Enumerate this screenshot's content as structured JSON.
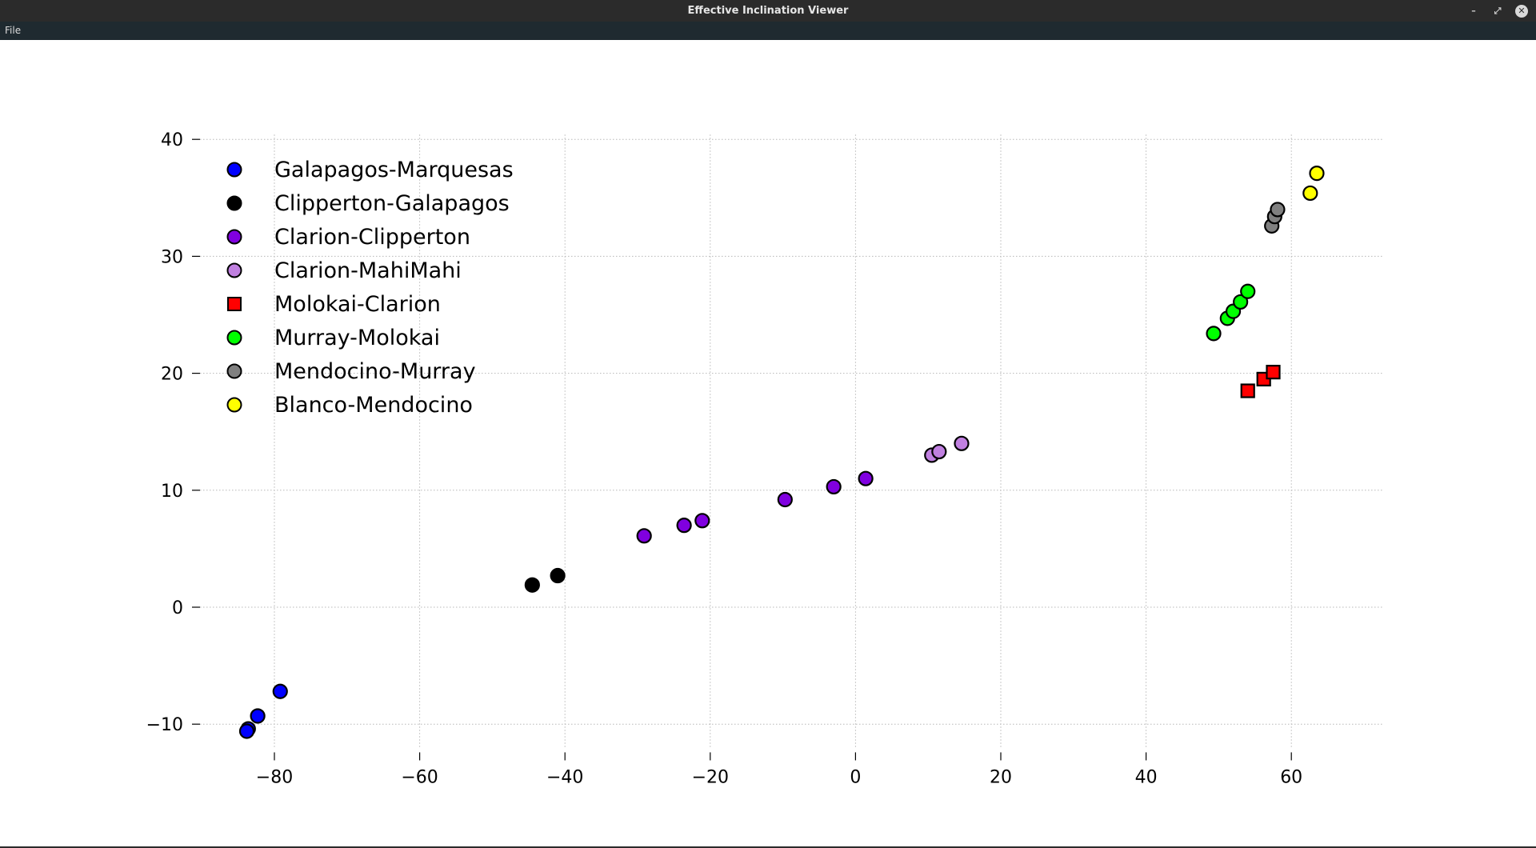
{
  "window": {
    "title": "Effective Inclination Viewer",
    "minimize_label": "–",
    "restore_label": "⤢",
    "close_label": "✕"
  },
  "menu": {
    "file_label": "File"
  },
  "chart_data": {
    "type": "scatter",
    "title": "",
    "xlabel": "",
    "ylabel": "",
    "xlim": [
      -90,
      72
    ],
    "ylim": [
      -12,
      42
    ],
    "xticks": [
      -80,
      -60,
      -40,
      -20,
      0,
      20,
      40,
      60
    ],
    "yticks": [
      -10,
      0,
      10,
      20,
      30,
      40
    ],
    "grid": true,
    "legend": "top-left",
    "series": [
      {
        "name": "Galapagos-Marquesas",
        "color": "#0000ff",
        "marker": "circle",
        "points": [
          [
            -79.2,
            -7.2
          ],
          [
            -82.3,
            -9.3
          ],
          [
            -83.6,
            -10.4
          ],
          [
            -83.8,
            -10.6
          ]
        ]
      },
      {
        "name": "Clipperton-Galapagos",
        "color": "#000000",
        "marker": "circle",
        "points": [
          [
            -44.5,
            1.9
          ],
          [
            -41.0,
            2.7
          ]
        ]
      },
      {
        "name": "Clarion-Clipperton",
        "color": "#8000e0",
        "marker": "circle",
        "points": [
          [
            -29.1,
            6.1
          ],
          [
            -23.6,
            7.0
          ],
          [
            -21.1,
            7.4
          ],
          [
            -9.7,
            9.2
          ],
          [
            -3.0,
            10.3
          ],
          [
            1.4,
            11.0
          ]
        ]
      },
      {
        "name": "Clarion-MahiMahi",
        "color": "#c080e0",
        "marker": "circle",
        "points": [
          [
            10.5,
            13.0
          ],
          [
            11.5,
            13.3
          ],
          [
            14.6,
            14.0
          ]
        ]
      },
      {
        "name": "Molokai-Clarion",
        "color": "#ff0000",
        "marker": "square",
        "points": [
          [
            54.0,
            18.5
          ],
          [
            56.2,
            19.5
          ],
          [
            57.5,
            20.1
          ]
        ]
      },
      {
        "name": "Murray-Molokai",
        "color": "#00ff00",
        "marker": "circle",
        "points": [
          [
            49.3,
            23.4
          ],
          [
            51.2,
            24.7
          ],
          [
            52.0,
            25.3
          ],
          [
            53.0,
            26.1
          ],
          [
            54.0,
            27.0
          ]
        ]
      },
      {
        "name": "Mendocino-Murray",
        "color": "#808080",
        "marker": "circle",
        "points": [
          [
            57.3,
            32.6
          ],
          [
            57.7,
            33.4
          ],
          [
            58.1,
            34.0
          ]
        ]
      },
      {
        "name": "Blanco-Mendocino",
        "color": "#ffff00",
        "marker": "circle",
        "points": [
          [
            62.6,
            35.4
          ],
          [
            63.5,
            37.1
          ]
        ]
      }
    ]
  }
}
